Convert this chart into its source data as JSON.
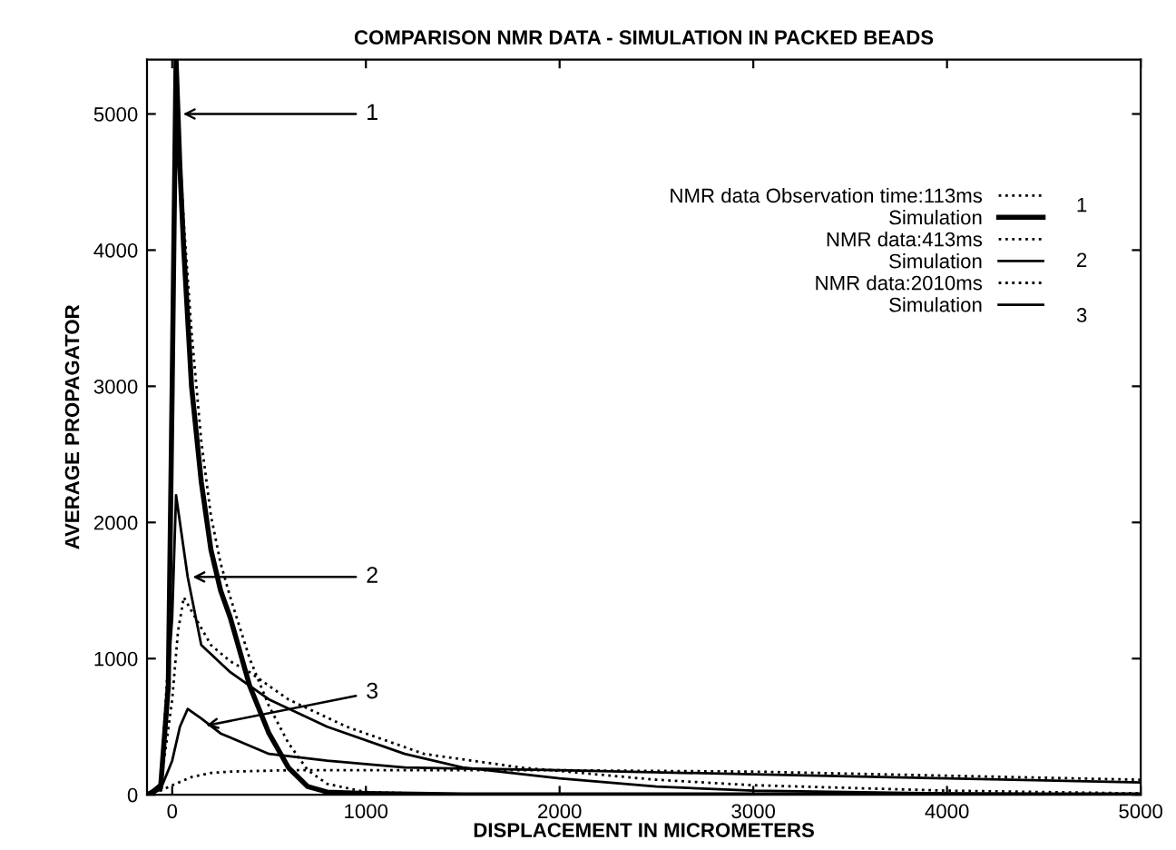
{
  "chart_data": {
    "type": "line",
    "title": "COMPARISON NMR DATA - SIMULATION IN PACKED BEADS",
    "xlabel": "DISPLACEMENT IN MICROMETERS",
    "ylabel": "AVERAGE PROPAGATOR",
    "xlim": [
      -130,
      5000
    ],
    "ylim": [
      0,
      5400
    ],
    "xticks": [
      0,
      1000,
      2000,
      3000,
      4000,
      5000
    ],
    "yticks": [
      0,
      1000,
      2000,
      3000,
      4000,
      5000
    ],
    "grid": false,
    "legend": "top right",
    "marker": "none",
    "series": [
      {
        "name": "NMR data Observation time:113ms",
        "color": "#000000",
        "line_style": "dotted",
        "x": [
          -130,
          -60,
          -20,
          0,
          20,
          40,
          60,
          100,
          150,
          200,
          250,
          300,
          400,
          500,
          600,
          700,
          800,
          1000,
          1500,
          5000
        ],
        "values": [
          0,
          60,
          1000,
          3300,
          5200,
          4700,
          4200,
          3400,
          2600,
          2050,
          1700,
          1450,
          1000,
          650,
          380,
          180,
          80,
          20,
          0,
          0
        ]
      },
      {
        "name": "Simulation",
        "color": "#000000",
        "line_style": "solid",
        "x": [
          -130,
          -60,
          -20,
          0,
          20,
          40,
          60,
          100,
          150,
          200,
          250,
          300,
          400,
          500,
          600,
          700,
          800,
          1000,
          1500,
          5000
        ],
        "values": [
          0,
          50,
          800,
          3000,
          5400,
          4600,
          4000,
          3000,
          2300,
          1800,
          1500,
          1300,
          800,
          450,
          200,
          60,
          20,
          10,
          0,
          0
        ]
      },
      {
        "name": "NMR data:413ms",
        "color": "#000000",
        "line_style": "dotted",
        "x": [
          -130,
          -60,
          0,
          30,
          60,
          100,
          200,
          300,
          400,
          600,
          900,
          1300,
          1800,
          2500,
          3000,
          4000,
          5000
        ],
        "values": [
          0,
          60,
          700,
          1200,
          1450,
          1350,
          1100,
          980,
          900,
          700,
          500,
          300,
          200,
          110,
          70,
          30,
          10
        ]
      },
      {
        "name": "Simulation",
        "color": "#000000",
        "line_style": "solid",
        "x": [
          -130,
          -60,
          0,
          20,
          50,
          80,
          150,
          300,
          500,
          800,
          1200,
          1500,
          2000,
          2500,
          3000,
          4000,
          5000
        ],
        "values": [
          0,
          80,
          1300,
          2200,
          1900,
          1600,
          1100,
          900,
          700,
          500,
          300,
          200,
          120,
          60,
          30,
          10,
          0
        ]
      },
      {
        "name": "NMR data:2010ms",
        "color": "#000000",
        "line_style": "dotted",
        "x": [
          -130,
          -60,
          0,
          100,
          200,
          300,
          600,
          1000,
          2000,
          3000,
          4000,
          5000
        ],
        "values": [
          0,
          30,
          70,
          130,
          160,
          170,
          180,
          180,
          180,
          170,
          140,
          110
        ]
      },
      {
        "name": "Simulation",
        "color": "#000000",
        "line_style": "solid",
        "x": [
          -130,
          -60,
          0,
          40,
          80,
          150,
          250,
          500,
          800,
          1200,
          2000,
          3000,
          4000,
          5000
        ],
        "values": [
          0,
          40,
          250,
          500,
          630,
          560,
          450,
          300,
          250,
          200,
          180,
          150,
          120,
          90
        ]
      }
    ],
    "annotations": [
      {
        "text": "1",
        "x": 30,
        "y": 5000
      },
      {
        "text": "2",
        "x": 80,
        "y": 1600
      },
      {
        "text": "3",
        "x": 150,
        "y": 500
      },
      "1",
      "2",
      "3"
    ]
  }
}
